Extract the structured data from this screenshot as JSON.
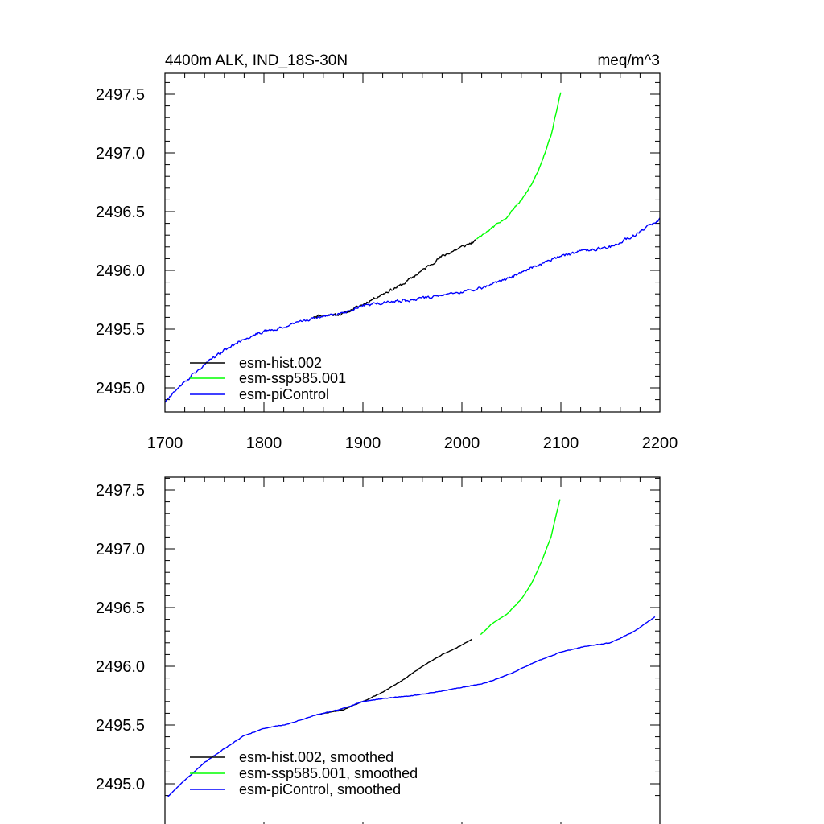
{
  "chart_data": [
    {
      "type": "line",
      "title_left": "4400m ALK, IND_18S-30N",
      "title_right": "meq/m^3",
      "xlim": [
        1700,
        2200
      ],
      "ylim": [
        2494.85,
        2497.6
      ],
      "x_ticks": [
        1700,
        1800,
        1900,
        2000,
        2100,
        2200
      ],
      "x_tick_labels": [
        "1700",
        "1800",
        "1900",
        "2000",
        "2100",
        "2200"
      ],
      "y_ticks": [
        2495.0,
        2495.5,
        2496.0,
        2496.5,
        2497.0,
        2497.5
      ],
      "y_tick_labels": [
        "2495.0",
        "2495.5",
        "2496.0",
        "2496.5",
        "2497.0",
        "2497.5"
      ],
      "legend_position": "bottom-left",
      "series": [
        {
          "name": "esm-hist.002",
          "color": "#000000",
          "noise": 0.018,
          "points": [
            [
              1850,
              2495.61
            ],
            [
              1880,
              2495.63
            ],
            [
              1900,
              2495.71
            ],
            [
              1920,
              2495.8
            ],
            [
              1940,
              2495.88
            ],
            [
              1960,
              2496.0
            ],
            [
              1980,
              2496.12
            ],
            [
              2000,
              2496.2
            ],
            [
              2014,
              2496.25
            ]
          ]
        },
        {
          "name": "esm-ssp585.001",
          "color": "#00ff00",
          "noise": 0.012,
          "points": [
            [
              2015,
              2496.27
            ],
            [
              2030,
              2496.36
            ],
            [
              2045,
              2496.45
            ],
            [
              2060,
              2496.6
            ],
            [
              2070,
              2496.72
            ],
            [
              2080,
              2496.9
            ],
            [
              2090,
              2497.15
            ],
            [
              2100,
              2497.52
            ]
          ]
        },
        {
          "name": "esm-piControl",
          "color": "#0000ff",
          "noise": 0.018,
          "points": [
            [
              1700,
              2494.88
            ],
            [
              1720,
              2495.05
            ],
            [
              1740,
              2495.2
            ],
            [
              1760,
              2495.32
            ],
            [
              1780,
              2495.42
            ],
            [
              1800,
              2495.48
            ],
            [
              1820,
              2495.52
            ],
            [
              1850,
              2495.59
            ],
            [
              1880,
              2495.64
            ],
            [
              1900,
              2495.7
            ],
            [
              1925,
              2495.73
            ],
            [
              1950,
              2495.75
            ],
            [
              1980,
              2495.79
            ],
            [
              2000,
              2495.82
            ],
            [
              2025,
              2495.86
            ],
            [
              2050,
              2495.94
            ],
            [
              2075,
              2496.04
            ],
            [
              2100,
              2496.12
            ],
            [
              2125,
              2496.17
            ],
            [
              2150,
              2496.2
            ],
            [
              2175,
              2496.3
            ],
            [
              2200,
              2496.44
            ]
          ]
        }
      ]
    },
    {
      "type": "line",
      "xlim": [
        1700,
        2200
      ],
      "ylim": [
        2494.85,
        2497.6
      ],
      "x_ticks": [
        1700,
        1800,
        1900,
        2000,
        2100,
        2200
      ],
      "y_ticks": [
        2495.0,
        2495.5,
        2496.0,
        2496.5,
        2497.0,
        2497.5
      ],
      "y_tick_labels": [
        "2495.0",
        "2495.5",
        "2496.0",
        "2496.5",
        "2497.0",
        "2497.5"
      ],
      "legend_position": "bottom-left",
      "series": [
        {
          "name": "esm-hist.002, smoothed",
          "color": "#000000",
          "noise": 0.004,
          "points": [
            [
              1855,
              2495.59
            ],
            [
              1880,
              2495.63
            ],
            [
              1900,
              2495.7
            ],
            [
              1920,
              2495.78
            ],
            [
              1940,
              2495.88
            ],
            [
              1960,
              2496.0
            ],
            [
              1980,
              2496.1
            ],
            [
              2000,
              2496.18
            ],
            [
              2010,
              2496.23
            ]
          ]
        },
        {
          "name": "esm-ssp585.001, smoothed",
          "color": "#00ff00",
          "noise": 0.003,
          "points": [
            [
              2019,
              2496.27
            ],
            [
              2030,
              2496.36
            ],
            [
              2045,
              2496.44
            ],
            [
              2060,
              2496.57
            ],
            [
              2070,
              2496.7
            ],
            [
              2080,
              2496.88
            ],
            [
              2090,
              2497.1
            ],
            [
              2099,
              2497.42
            ]
          ]
        },
        {
          "name": "esm-piControl, smoothed",
          "color": "#0000ff",
          "noise": 0.004,
          "points": [
            [
              1703,
              2494.89
            ],
            [
              1720,
              2495.03
            ],
            [
              1740,
              2495.18
            ],
            [
              1760,
              2495.3
            ],
            [
              1780,
              2495.41
            ],
            [
              1800,
              2495.47
            ],
            [
              1825,
              2495.51
            ],
            [
              1850,
              2495.58
            ],
            [
              1880,
              2495.64
            ],
            [
              1900,
              2495.7
            ],
            [
              1925,
              2495.73
            ],
            [
              1950,
              2495.75
            ],
            [
              1980,
              2495.79
            ],
            [
              2000,
              2495.82
            ],
            [
              2025,
              2495.86
            ],
            [
              2050,
              2495.94
            ],
            [
              2075,
              2496.04
            ],
            [
              2100,
              2496.12
            ],
            [
              2125,
              2496.17
            ],
            [
              2150,
              2496.2
            ],
            [
              2175,
              2496.3
            ],
            [
              2195,
              2496.42
            ]
          ]
        }
      ]
    }
  ]
}
